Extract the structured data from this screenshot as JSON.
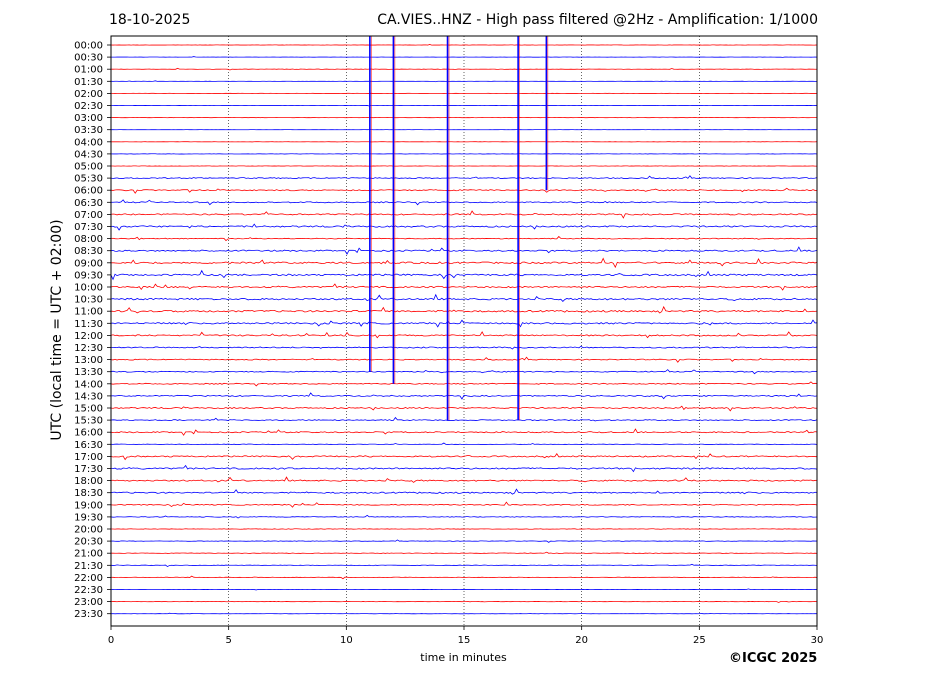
{
  "header": {
    "date": "18-10-2025",
    "title": "CA.VIES..HNZ - High pass filtered @2Hz - Amplification: 1/1000"
  },
  "footer": {
    "copyright": "©ICGC 2025"
  },
  "chart_data": {
    "type": "line",
    "title": "CA.VIES..HNZ - High pass filtered @2Hz - Amplification: 1/1000",
    "xlabel": "time in minutes",
    "ylabel": "UTC (local time = UTC + 02:00)",
    "xlim": [
      0,
      30
    ],
    "x_ticks": [
      0,
      5,
      10,
      15,
      20,
      25,
      30
    ],
    "grid": "vertical dotted lines at 5-minute intervals",
    "series_colors": [
      "#ff0000",
      "#0000ff"
    ],
    "rows": [
      "00:00",
      "00:30",
      "01:00",
      "01:30",
      "02:00",
      "02:30",
      "03:00",
      "03:30",
      "04:00",
      "04:30",
      "05:00",
      "05:30",
      "06:00",
      "06:30",
      "07:00",
      "07:30",
      "08:00",
      "08:30",
      "09:00",
      "09:30",
      "10:00",
      "10:30",
      "11:00",
      "11:30",
      "12:00",
      "12:30",
      "13:00",
      "13:30",
      "14:00",
      "14:30",
      "15:00",
      "15:30",
      "16:00",
      "16:30",
      "17:00",
      "17:30",
      "18:00",
      "18:30",
      "19:00",
      "19:30",
      "20:00",
      "20:30",
      "21:00",
      "21:30",
      "22:00",
      "22:30",
      "23:00",
      "23:30"
    ],
    "row_activity": [
      0.15,
      0.12,
      0.2,
      0.12,
      0.1,
      0.12,
      0.15,
      0.1,
      0.15,
      0.2,
      0.2,
      0.6,
      0.7,
      0.7,
      0.8,
      0.9,
      0.5,
      0.8,
      1.0,
      1.0,
      0.9,
      1.0,
      1.0,
      0.9,
      0.8,
      0.7,
      0.6,
      0.6,
      0.6,
      0.7,
      0.7,
      0.6,
      0.7,
      0.3,
      0.8,
      0.9,
      0.8,
      0.8,
      0.6,
      0.4,
      0.3,
      0.3,
      0.3,
      0.3,
      0.3,
      0.15,
      0.2,
      0.15
    ],
    "events": [
      {
        "minute": 11.0,
        "from_row": "00:00",
        "to_row": "13:30"
      },
      {
        "minute": 12.0,
        "from_row": "00:00",
        "to_row": "14:00"
      },
      {
        "minute": 14.3,
        "from_row": "00:00",
        "to_row": "15:30"
      },
      {
        "minute": 17.3,
        "from_row": "00:00",
        "to_row": "15:30"
      },
      {
        "minute": 18.5,
        "from_row": "00:00",
        "to_row": "06:00"
      }
    ]
  }
}
